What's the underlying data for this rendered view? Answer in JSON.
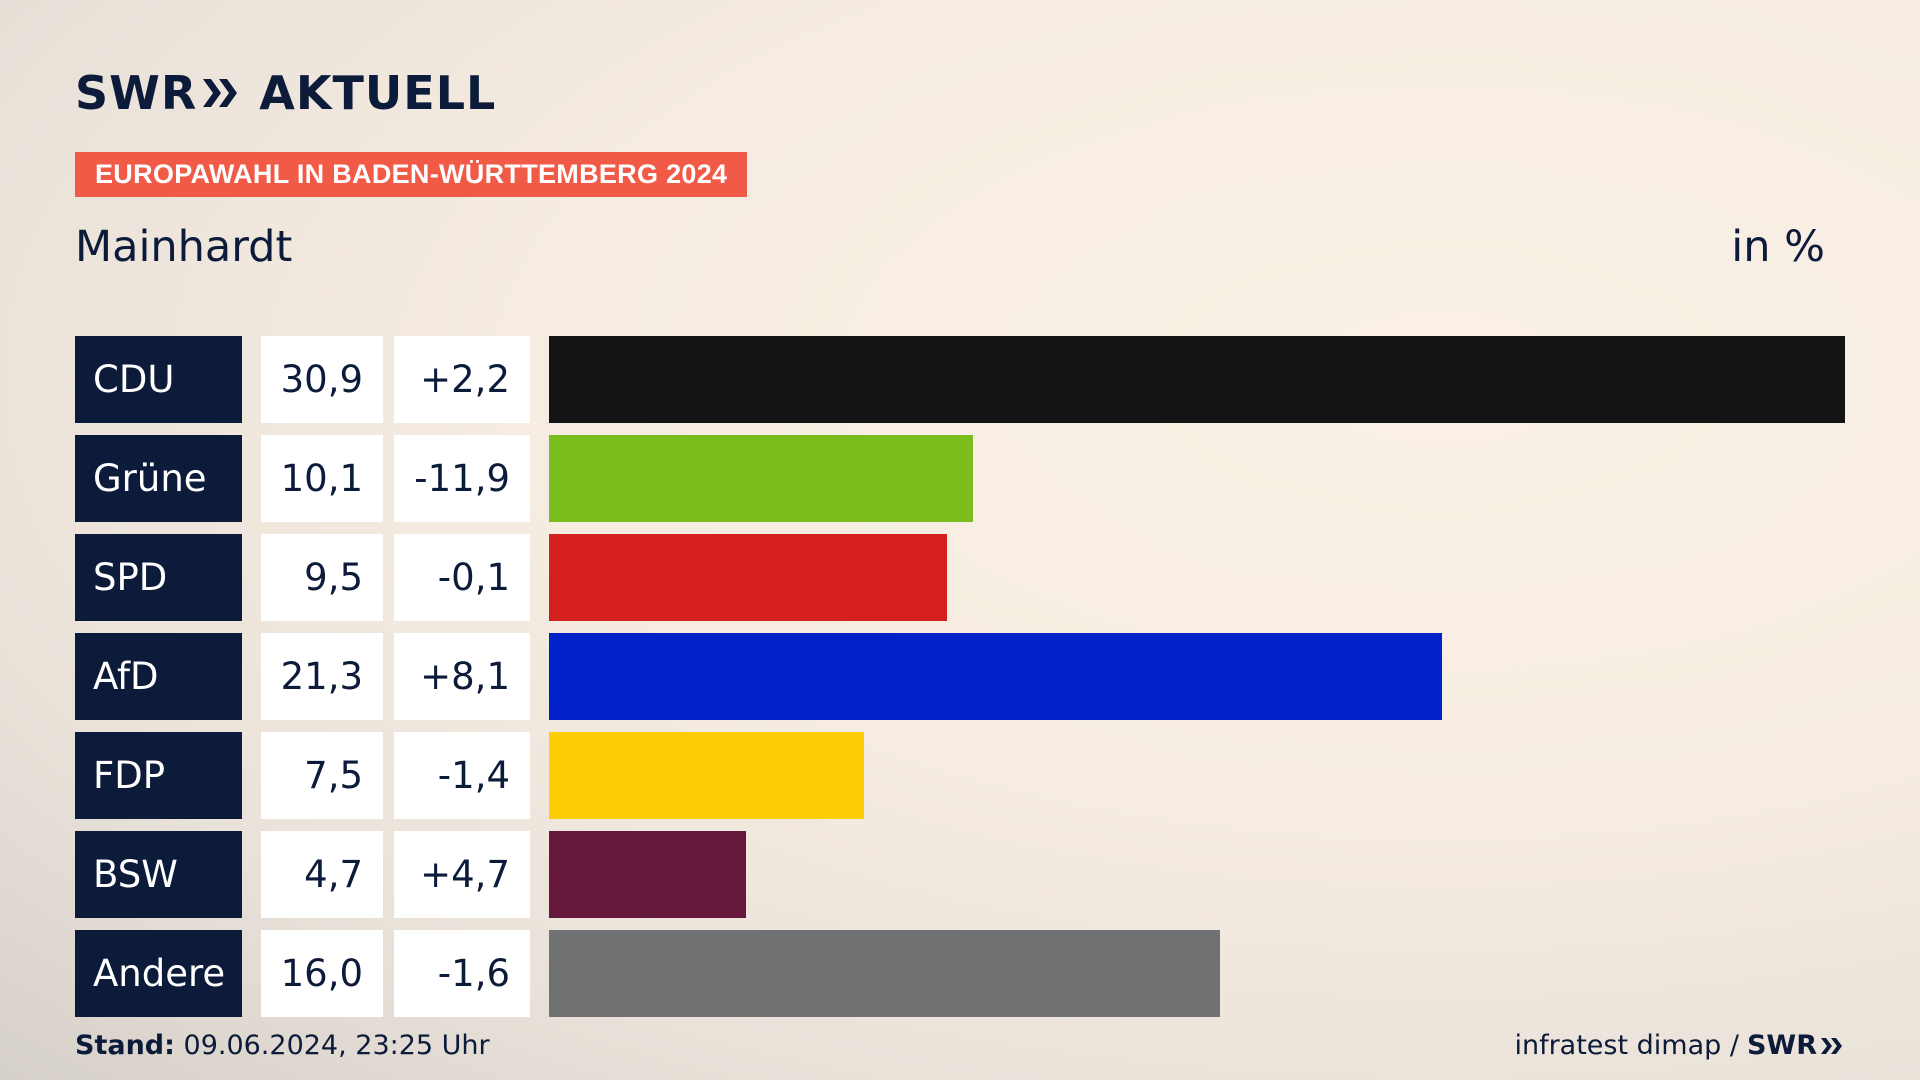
{
  "brand": {
    "logo_left": "SWR",
    "logo_right": "AKTUELL",
    "color_navy": "#0d1b3a",
    "color_accent": "#f15a46"
  },
  "header": {
    "tag": "EUROPAWAHL IN BADEN-WÜRTTEMBERG 2024",
    "place": "Mainhardt",
    "unit": "in %"
  },
  "chart_data": {
    "type": "bar",
    "orientation": "horizontal",
    "title": "Mainhardt",
    "unit": "in %",
    "categories": [
      "CDU",
      "Grüne",
      "SPD",
      "AfD",
      "FDP",
      "BSW",
      "Andere"
    ],
    "values": [
      30.9,
      10.1,
      9.5,
      21.3,
      7.5,
      4.7,
      16.0
    ],
    "values_label": [
      "30,9",
      "10,1",
      "9,5",
      "21,3",
      "7,5",
      "4,7",
      "16,0"
    ],
    "diff_label": [
      "+2,2",
      "-11,9",
      "-0,1",
      "+8,1",
      "-1,4",
      "+4,7",
      "-1,6"
    ],
    "colors": [
      "#141414",
      "#7bbd1c",
      "#d61f1f",
      "#0022c8",
      "#fecd07",
      "#66183c",
      "#6f7173"
    ],
    "xlim": [
      0,
      30.9
    ]
  },
  "footer": {
    "stand_label": "Stand:",
    "stand_value": "09.06.2024, 23:25 Uhr",
    "source": "infratest dimap /",
    "source_brand": "SWR"
  }
}
